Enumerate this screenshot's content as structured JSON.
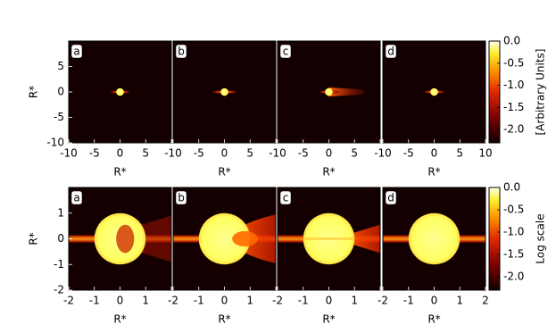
{
  "chart_data": [
    {
      "type": "image",
      "panels": [
        "a",
        "b",
        "c",
        "d"
      ],
      "xlabel": "R*",
      "ylabel": "R*",
      "xlim": [
        -10,
        10
      ],
      "xticks": [
        -10,
        -5,
        0,
        5,
        10
      ],
      "ylim": [
        -10,
        10
      ],
      "yticks": [
        -10,
        -5,
        0,
        5
      ],
      "colorbar": {
        "label": "[Arbitrary Units]",
        "lim": [
          -2.3,
          0
        ],
        "ticks": [
          {
            "value": 0,
            "label": "0.0"
          },
          -0.5,
          {
            "value": -1,
            "label": "-1.0"
          },
          -1.5,
          {
            "value": -2,
            "label": "-2.0"
          }
        ]
      }
    },
    {
      "type": "image",
      "panels": [
        "a",
        "b",
        "c",
        "d"
      ],
      "xlabel": "R*",
      "ylabel": "R*",
      "xlim": [
        -2,
        2
      ],
      "xticks": [
        -2,
        -1,
        0,
        1,
        2
      ],
      "ylim": [
        -2,
        2
      ],
      "yticks": [
        -2,
        -1,
        0,
        1
      ],
      "colorbar": {
        "label": "Log scale",
        "lim": [
          -2.3,
          0
        ],
        "ticks": [
          {
            "value": 0,
            "label": "0.0"
          },
          -0.5,
          {
            "value": -1,
            "label": "-1.0"
          },
          -1.5,
          {
            "value": -2,
            "label": "-2.0"
          }
        ]
      }
    }
  ]
}
